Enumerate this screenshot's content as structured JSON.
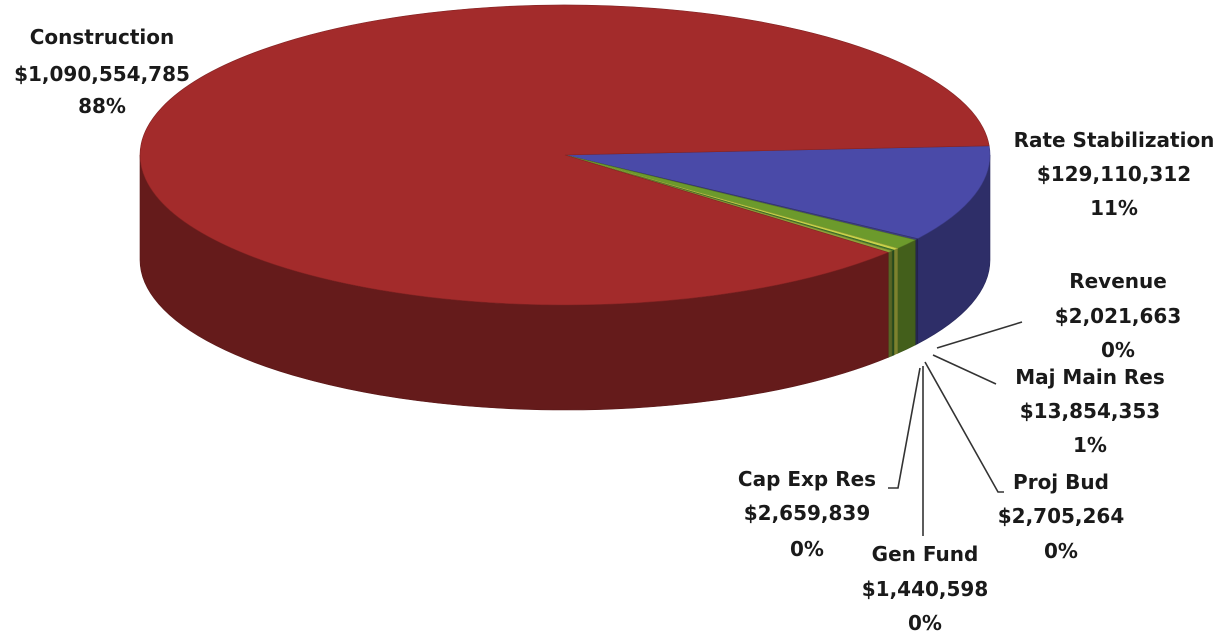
{
  "chart_data": {
    "type": "pie",
    "title": "",
    "legend": "none",
    "slices": [
      {
        "key": "rate-stabilization",
        "label": "Rate Stabilization",
        "value_text": "$129,110,312",
        "pct_text": "11%",
        "value": 129110312,
        "color": "#4a4aa8"
      },
      {
        "key": "revenue",
        "label": "Revenue",
        "value_text": "$2,021,663",
        "pct_text": "0%",
        "value": 2021663,
        "color": "#3e3e82"
      },
      {
        "key": "maj-main-res",
        "label": "Maj  Main Res",
        "value_text": "$13,854,353",
        "pct_text": "1%",
        "value": 13854353,
        "color": "#6c9a2c"
      },
      {
        "key": "proj-bud",
        "label": "Proj Bud",
        "value_text": "$2,705,264",
        "pct_text": "0%",
        "value": 2705264,
        "color": "#c8d24a"
      },
      {
        "key": "gen-fund",
        "label": "Gen Fund",
        "value_text": "$1,440,598",
        "pct_text": "0%",
        "value": 1440598,
        "color": "#3f7a30"
      },
      {
        "key": "cap-exp-res",
        "label": "Cap Exp Res",
        "value_text": "$2,659,839",
        "pct_text": "0%",
        "value": 2659839,
        "color": "#8da33a"
      },
      {
        "key": "construction",
        "label": "Construction",
        "value_text": "$1,090,554,785",
        "pct_text": "88%",
        "value": 1090554785,
        "color": "#a32b2b"
      }
    ]
  }
}
